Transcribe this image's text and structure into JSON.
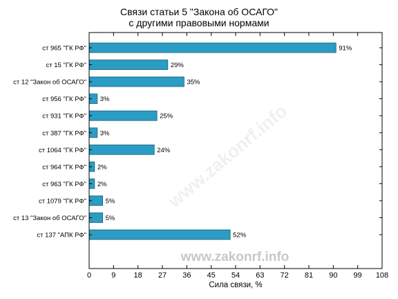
{
  "chart_data": {
    "type": "bar",
    "orientation": "horizontal",
    "title_lines": [
      "Связи статьи 5 \"Закона об ОСАГО\"",
      "с другими правовыми нормами"
    ],
    "categories": [
      "ст 965 \"ГК РФ\"",
      "ст 15 \"ГК РФ\"",
      "ст 12 \"Закон об ОСАГО\"",
      "ст 956 \"ГК РФ\"",
      "ст 931 \"ГК РФ\"",
      "ст 387 \"ГК РФ\"",
      "ст 1064 \"ГК РФ\"",
      "ст 964 \"ГК РФ\"",
      "ст 963 \"ГК РФ\"",
      "ст 1079 \"ГК РФ\"",
      "ст 13 \"Закон об ОСАГО\"",
      "ст 137 \"АПК РФ\""
    ],
    "values": [
      91,
      29,
      35,
      3,
      25,
      3,
      24,
      2,
      2,
      5,
      5,
      52
    ],
    "value_labels": [
      "91%",
      "29%",
      "35%",
      "3%",
      "25%",
      "3%",
      "24%",
      "2%",
      "2%",
      "5%",
      "5%",
      "52%"
    ],
    "xlabel": "Сила связи, %",
    "ylabel": "",
    "xlim": [
      0,
      108
    ],
    "xticks": [
      0,
      9,
      18,
      27,
      36,
      45,
      54,
      63,
      72,
      81,
      90,
      99,
      108
    ],
    "grid": false,
    "bar_color": "#2b9cc4",
    "bar_edge_color": "#1f5f78",
    "watermark": "www.zakonrf.info"
  }
}
